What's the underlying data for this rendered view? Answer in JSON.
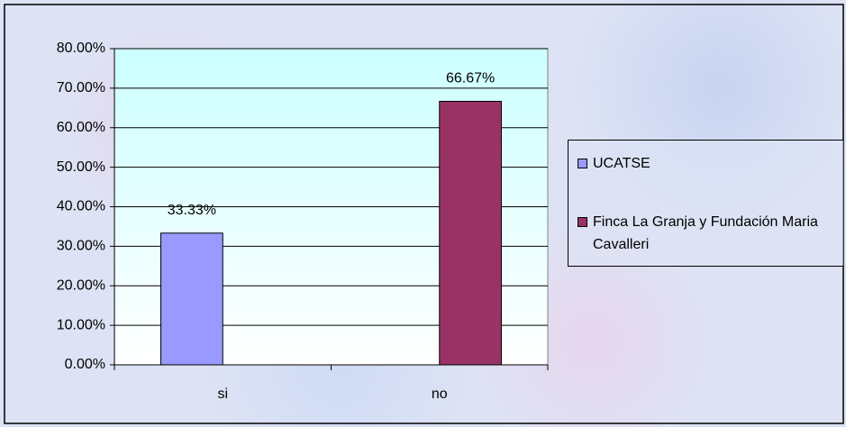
{
  "chart_data": {
    "type": "bar",
    "categories": [
      "si",
      "no"
    ],
    "series": [
      {
        "name": "UCATSE",
        "color": "#9999ff",
        "values": [
          33.33,
          null
        ],
        "value_labels": [
          "33.33%",
          null
        ]
      },
      {
        "name": "Finca La Granja y Fundación Maria Cavalleri",
        "color": "#993366",
        "values": [
          null,
          66.67
        ],
        "value_labels": [
          null,
          "66.67%"
        ]
      }
    ],
    "ylim": [
      0,
      80
    ],
    "yticks": [
      {
        "value": 0,
        "label": "0.00%"
      },
      {
        "value": 10,
        "label": "10.00%"
      },
      {
        "value": 20,
        "label": "20.00%"
      },
      {
        "value": 30,
        "label": "30.00%"
      },
      {
        "value": 40,
        "label": "40.00%"
      },
      {
        "value": 50,
        "label": "50.00%"
      },
      {
        "value": 60,
        "label": "60.00%"
      },
      {
        "value": 70,
        "label": "70.00%"
      },
      {
        "value": 80,
        "label": "80.00%"
      }
    ],
    "grid": true
  }
}
